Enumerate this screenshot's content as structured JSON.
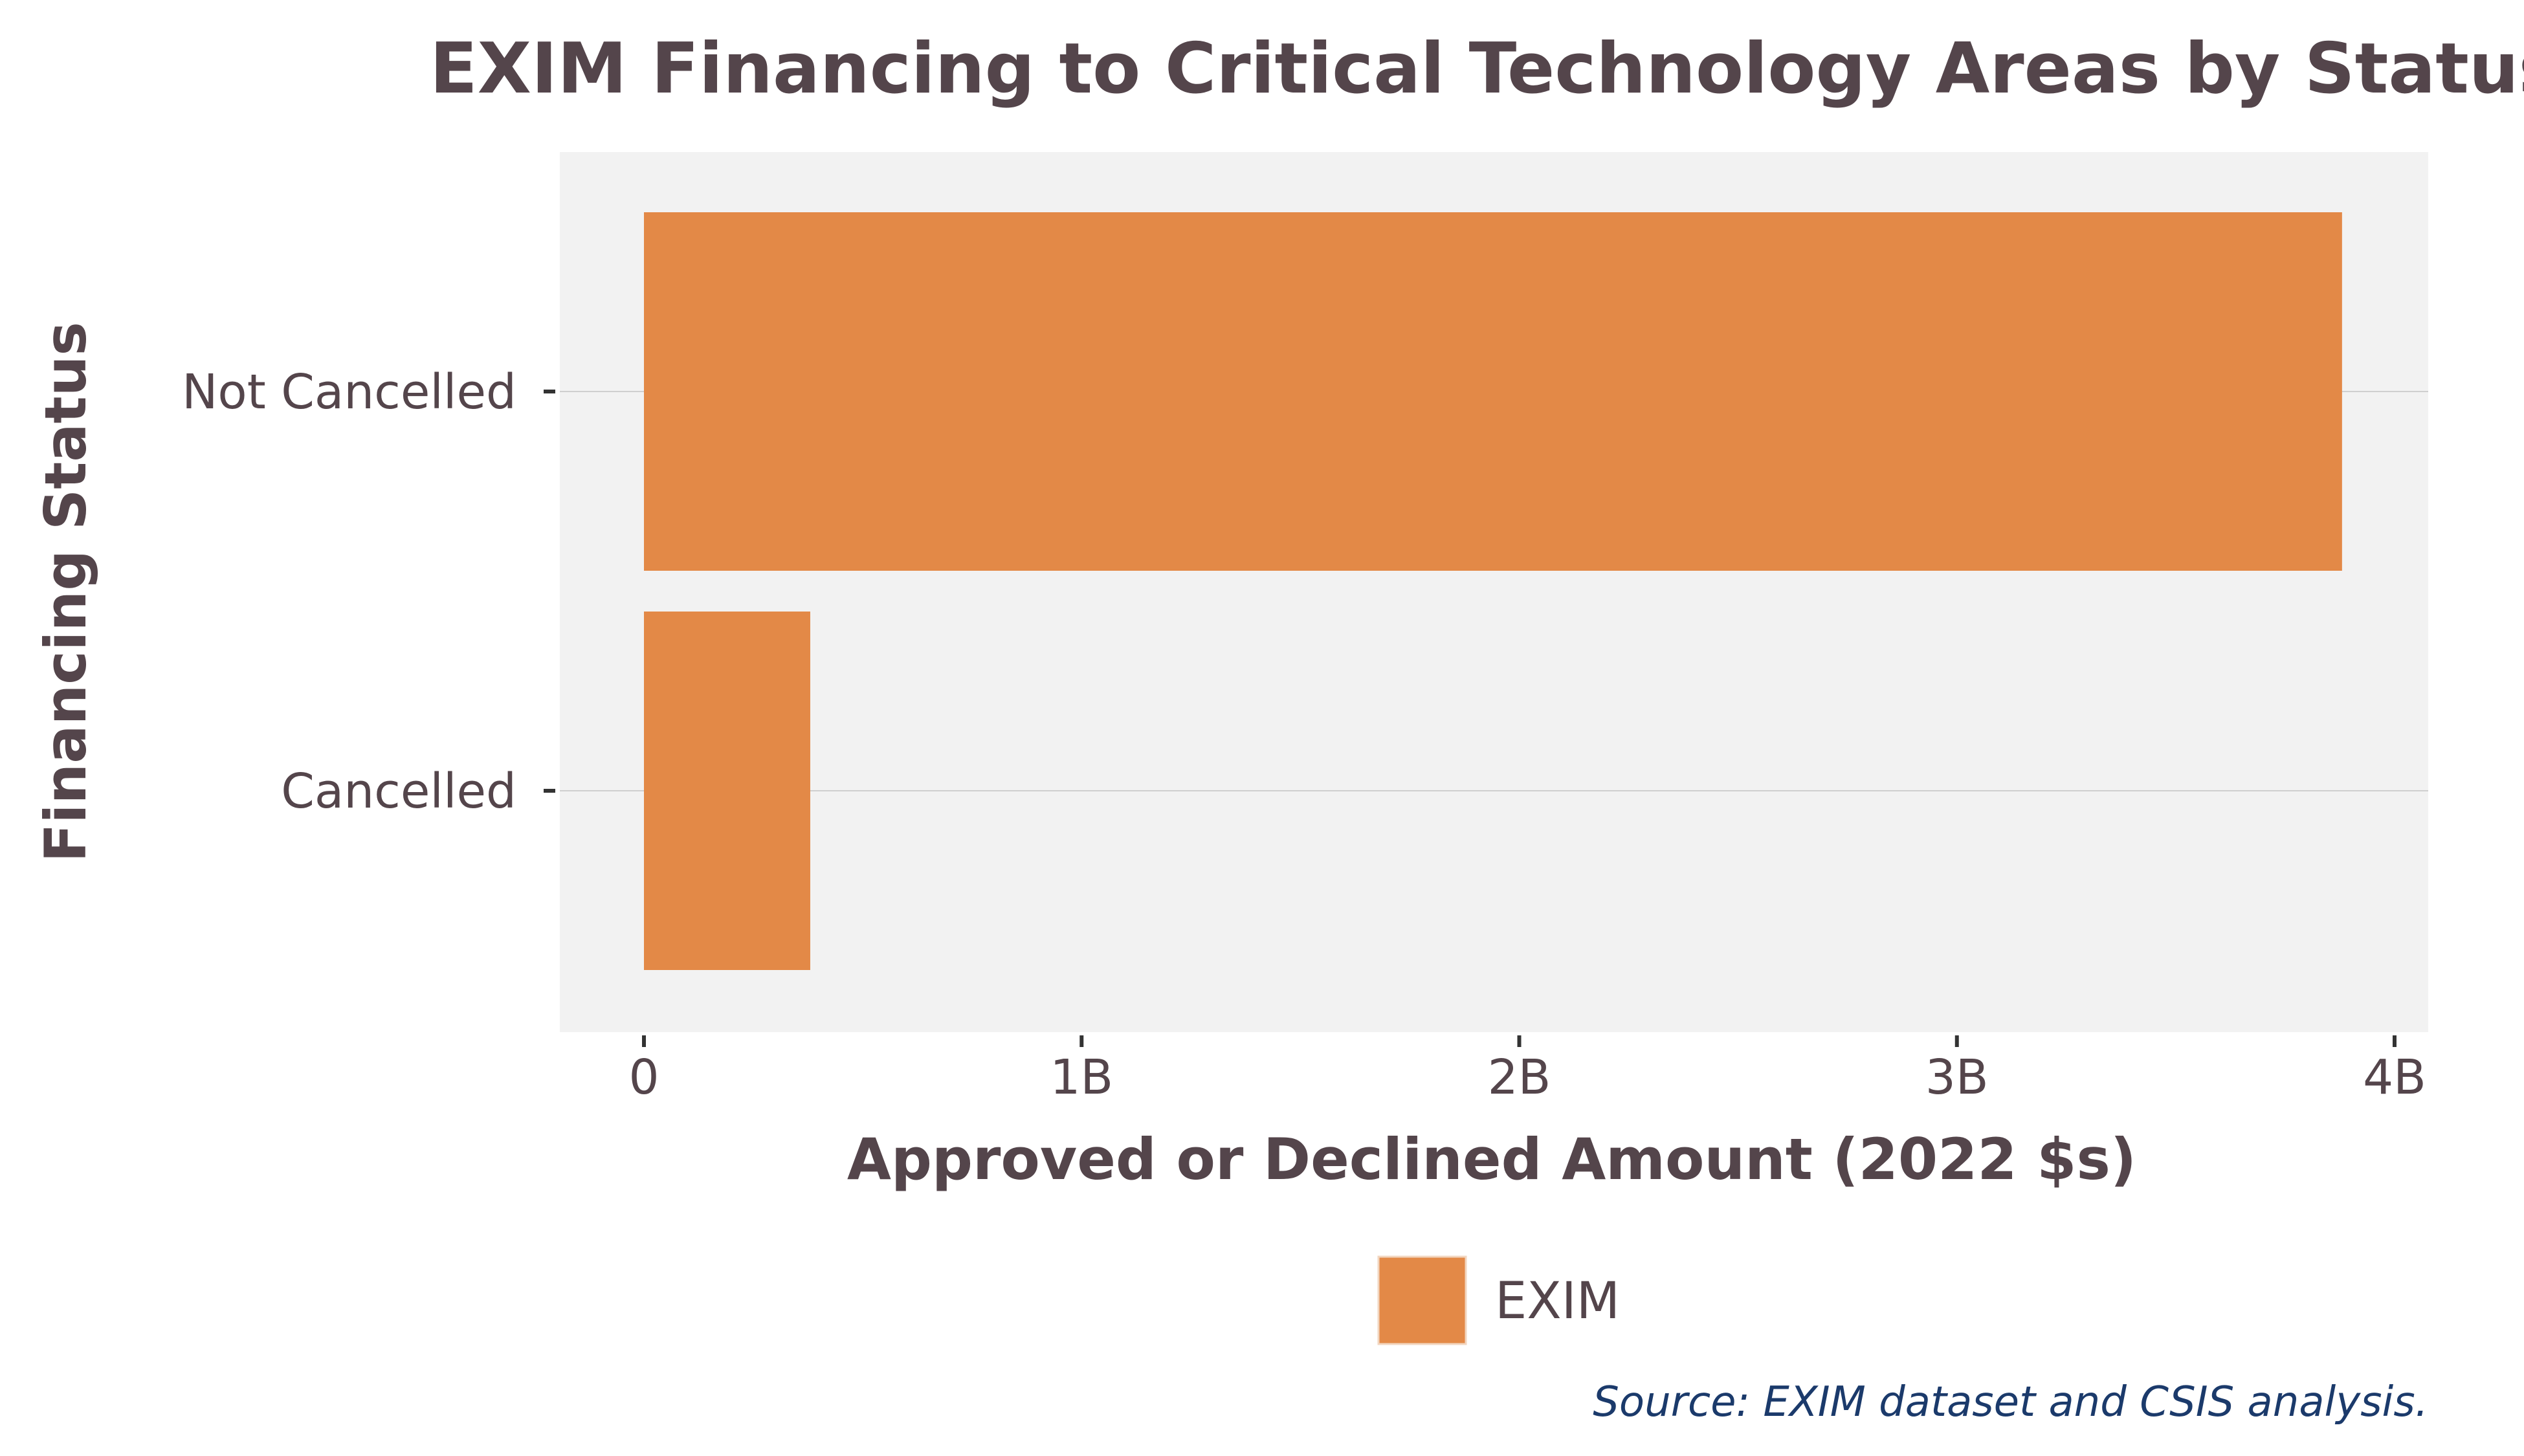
{
  "chart_data": {
    "type": "bar",
    "orientation": "horizontal",
    "title": "EXIM Financing to Critical Technology Areas by Status",
    "xlabel": "Approved or Declined Amount (2022 $s)",
    "ylabel": "Financing Status",
    "categories": [
      "Not Cancelled",
      "Cancelled"
    ],
    "series": [
      {
        "name": "EXIM",
        "values": [
          3880000000,
          380000000
        ],
        "color": "#e38947"
      }
    ],
    "xlim": [
      0,
      4000000000
    ],
    "xticks": [
      0,
      1000000000,
      2000000000,
      3000000000,
      4000000000
    ],
    "xtick_labels": [
      "0",
      "1B",
      "2B",
      "3B",
      "4B"
    ],
    "grid": "horizontal lines at categories",
    "legend_position": "bottom-center",
    "panel_background": "#f2f2f2",
    "text_color": "#54454b"
  },
  "source": "Source: EXIM dataset and CSIS analysis."
}
